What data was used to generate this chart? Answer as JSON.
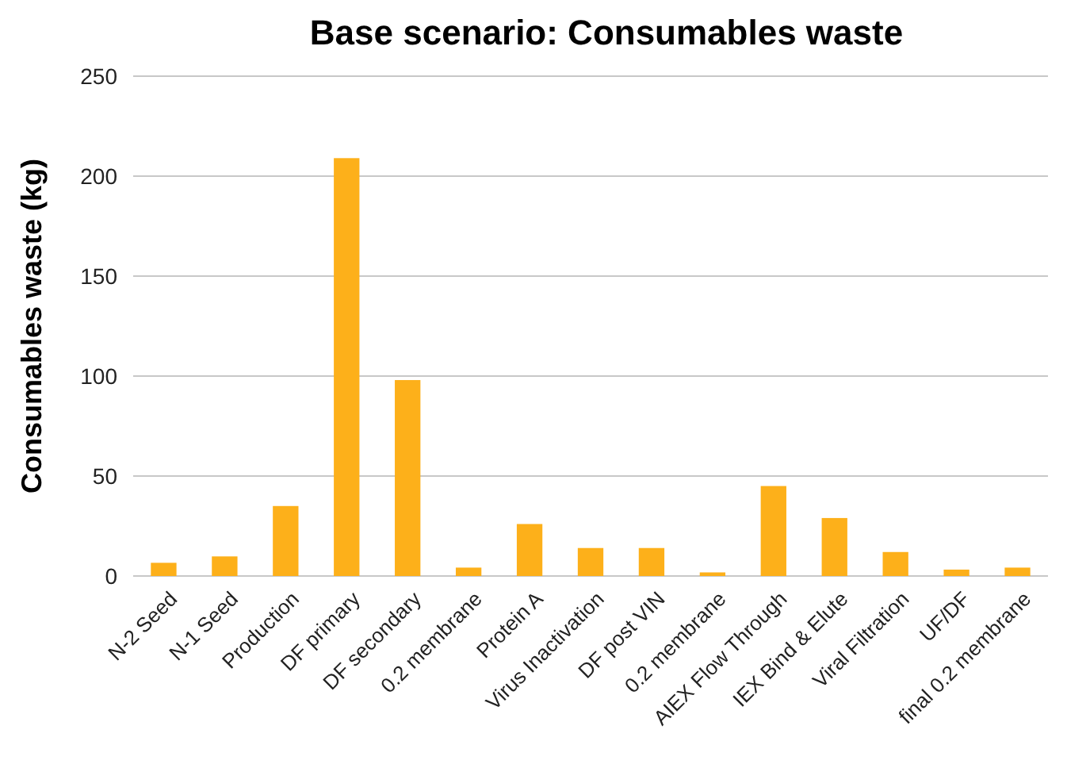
{
  "chart_data": {
    "type": "bar",
    "title": "Base scenario: Consumables waste",
    "ylabel": "Consumables waste (kg)",
    "categories": [
      "N-2 Seed",
      "N-1 Seed",
      "Production",
      "DF primary",
      "DF secondary",
      "0.2 membrane",
      "Protein A",
      "Virus Inactivation",
      "DF post VIN",
      "0.2 membrane",
      "AIEX Flow Through",
      "IEX Bind & Elute",
      "Viral Filtration",
      "UF/DF",
      "final 0.2 membrane"
    ],
    "values": [
      6.6,
      9.8,
      35,
      209,
      98,
      4.2,
      26,
      14,
      14,
      1.8,
      45,
      29,
      12,
      3.2,
      4.2
    ],
    "color": "#fdb01a",
    "ylim": [
      0,
      250
    ],
    "yticks": [
      0,
      50,
      100,
      150,
      200,
      250
    ],
    "grid": "y"
  }
}
